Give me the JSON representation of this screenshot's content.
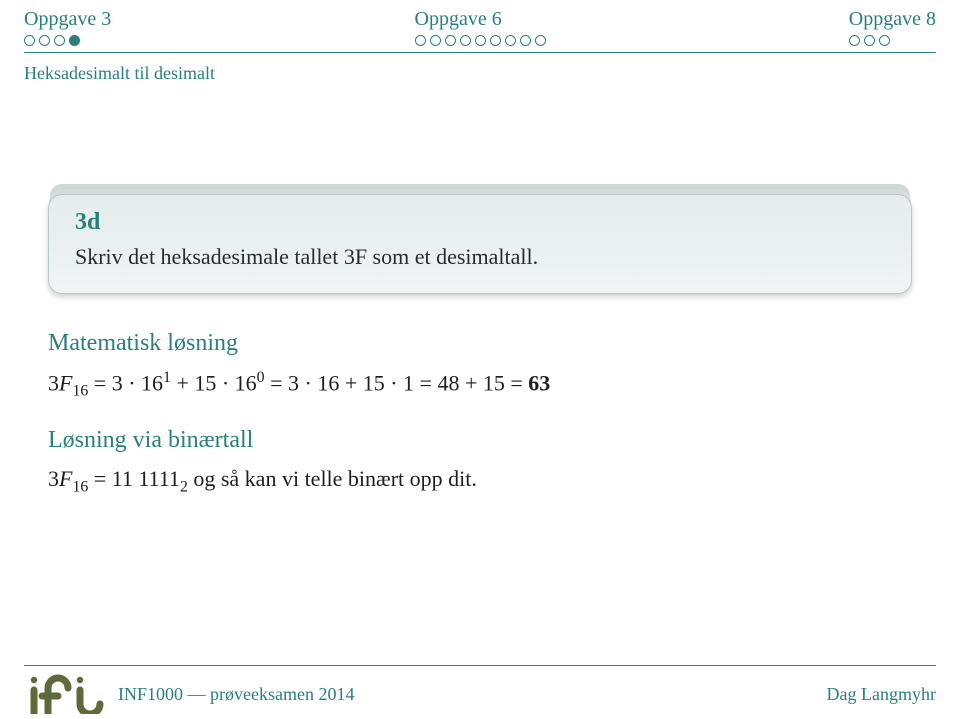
{
  "colors": {
    "accent": "#2a8079",
    "logo": "#5f6a3a",
    "text": "#1e1e1e",
    "card_bg_top": "#e3ecee",
    "card_bg_bottom": "#f0f4f5",
    "card_border": "#b8c6c7"
  },
  "nav": {
    "sections": [
      {
        "label": "Oppgave 3",
        "dots": 4,
        "filled_index": 3
      },
      {
        "label": "Oppgave 6",
        "dots": 9,
        "filled_index": -1
      },
      {
        "label": "Oppgave 8",
        "dots": 3,
        "filled_index": -1
      }
    ]
  },
  "subheader": "Heksadesimalt til desimalt",
  "card": {
    "title": "3d",
    "body": "Skriv det heksadesimale tallet 3F som et desimaltall."
  },
  "section1": {
    "title": "Matematisk løsning",
    "math_html": "3<span class=\"it\">F</span><sub>16</sub> = 3 · 16<sup>1</sup> + 15 · 16<sup>0</sup> = 3 · 16 + 15 · 1 = 48 + 15 = <span class=\"bold\">63</span>"
  },
  "section2": {
    "title": "Løsning via binærtall",
    "math_html": "3<span class=\"it\">F</span><sub>16</sub> = 11 1111<sub>2</sub> og så kan vi telle binært opp dit."
  },
  "footer": {
    "left": "INF1000 — prøveeksamen 2014",
    "right": "Dag Langmyhr"
  }
}
